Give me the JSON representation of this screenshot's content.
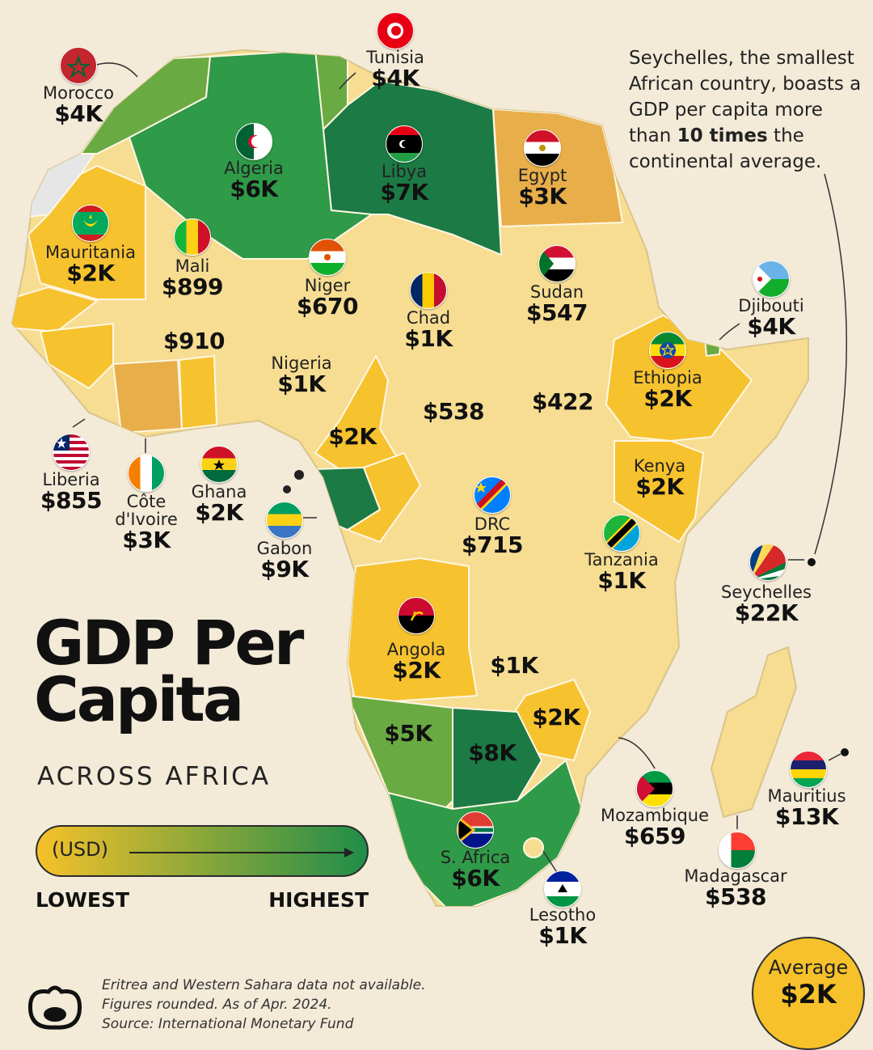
{
  "title_line1": "GDP Per",
  "title_line2": "Capita",
  "subtitle": "ACROSS AFRICA",
  "legend": {
    "unit": "(USD)",
    "low": "LOWEST",
    "high": "HIGHEST",
    "color_low": "#f6c12a",
    "color_high": "#1f8d4a"
  },
  "note": {
    "part1": "Seychelles, the smallest African country, boasts a GDP per capita more than ",
    "emphasis": "10 times",
    "part2": " the continental average."
  },
  "average": {
    "label": "Average",
    "value": "$2K"
  },
  "footer": [
    "Eritrea and Western Sahara data not available.",
    "Figures rounded. As of Apr. 2024.",
    "Source: International Monetary Fund"
  ],
  "colors": {
    "background": "#f3ead8",
    "low": "#f7dd92",
    "mid_low": "#f6c22e",
    "mid": "#e8ae4a",
    "light_green": "#6aaa43",
    "green": "#2f9a48",
    "dark_green": "#1c7a45",
    "na": "#e6e6e6"
  },
  "countries": [
    {
      "id": "morocco",
      "name": "Morocco",
      "value": "$4K",
      "icon": "morocco-flag-icon"
    },
    {
      "id": "tunisia",
      "name": "Tunisia",
      "value": "$4K",
      "icon": "tunisia-flag-icon"
    },
    {
      "id": "algeria",
      "name": "Algeria",
      "value": "$6K",
      "icon": "algeria-flag-icon"
    },
    {
      "id": "libya",
      "name": "Libya",
      "value": "$7K",
      "icon": "libya-flag-icon"
    },
    {
      "id": "egypt",
      "name": "Egypt",
      "value": "$3K",
      "icon": "egypt-flag-icon"
    },
    {
      "id": "mauritania",
      "name": "Mauritania",
      "value": "$2K",
      "icon": "mauritania-flag-icon"
    },
    {
      "id": "mali",
      "name": "Mali",
      "value": "$899",
      "icon": "mali-flag-icon"
    },
    {
      "id": "niger",
      "name": "Niger",
      "value": "$670",
      "icon": "niger-flag-icon"
    },
    {
      "id": "chad",
      "name": "Chad",
      "value": "$1K",
      "icon": "chad-flag-icon"
    },
    {
      "id": "sudan",
      "name": "Sudan",
      "value": "$547",
      "icon": "sudan-flag-icon"
    },
    {
      "id": "djibouti",
      "name": "Djibouti",
      "value": "$4K",
      "icon": "djibouti-flag-icon"
    },
    {
      "id": "ethiopia",
      "name": "Ethiopia",
      "value": "$2K",
      "icon": "ethiopia-flag-icon"
    },
    {
      "id": "nigeria",
      "name": "Nigeria",
      "value": "$1K"
    },
    {
      "id": "burkina",
      "name": "",
      "value": "$910"
    },
    {
      "id": "car",
      "name": "",
      "value": "$538"
    },
    {
      "id": "ssudan",
      "name": "",
      "value": "$422"
    },
    {
      "id": "cameroon",
      "name": "",
      "value": "$2K"
    },
    {
      "id": "liberia",
      "name": "Liberia",
      "value": "$855",
      "icon": "liberia-flag-icon"
    },
    {
      "id": "cote",
      "name": "Côte d'Ivoire",
      "value": "$3K",
      "icon": "cote-divoire-flag-icon"
    },
    {
      "id": "ghana",
      "name": "Ghana",
      "value": "$2K",
      "icon": "ghana-flag-icon"
    },
    {
      "id": "gabon",
      "name": "Gabon",
      "value": "$9K",
      "icon": "gabon-flag-icon"
    },
    {
      "id": "kenya",
      "name": "Kenya",
      "value": "$2K"
    },
    {
      "id": "drc",
      "name": "DRC",
      "value": "$715",
      "icon": "drc-flag-icon"
    },
    {
      "id": "tanzania",
      "name": "Tanzania",
      "value": "$1K",
      "icon": "tanzania-flag-icon"
    },
    {
      "id": "seychelles",
      "name": "Seychelles",
      "value": "$22K",
      "icon": "seychelles-flag-icon"
    },
    {
      "id": "angola",
      "name": "Angola",
      "value": "$2K",
      "icon": "angola-flag-icon"
    },
    {
      "id": "zambia",
      "name": "",
      "value": "$1K"
    },
    {
      "id": "zimbabwe",
      "name": "",
      "value": "$2K"
    },
    {
      "id": "namibia",
      "name": "",
      "value": "$5K"
    },
    {
      "id": "botswana",
      "name": "",
      "value": "$8K"
    },
    {
      "id": "safrica",
      "name": "S. Africa",
      "value": "$6K",
      "icon": "south-africa-flag-icon"
    },
    {
      "id": "mozambique",
      "name": "Mozambique",
      "value": "$659",
      "icon": "mozambique-flag-icon"
    },
    {
      "id": "mauritius",
      "name": "Mauritius",
      "value": "$13K",
      "icon": "mauritius-flag-icon"
    },
    {
      "id": "madagascar",
      "name": "Madagascar",
      "value": "$538",
      "icon": "madagascar-flag-icon"
    },
    {
      "id": "lesotho",
      "name": "Lesotho",
      "value": "$1K",
      "icon": "lesotho-flag-icon"
    }
  ]
}
